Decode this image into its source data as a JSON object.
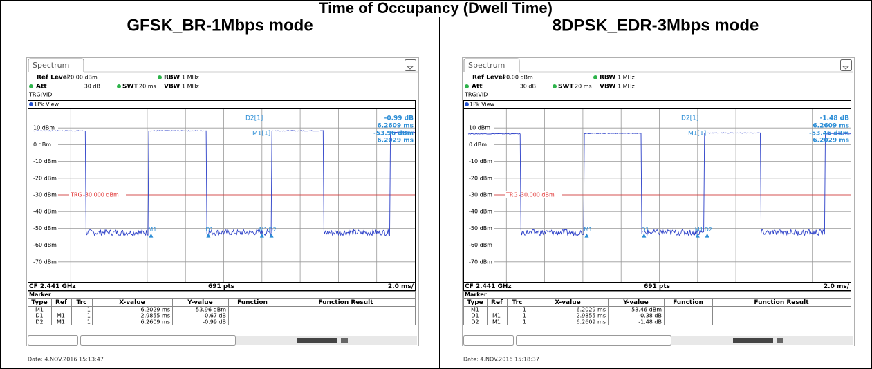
{
  "title": "Time of Occupancy (Dwell Time)",
  "panels": [
    {
      "mode": "GFSK_BR-1Mbps mode",
      "tab": "Spectrum",
      "settings": {
        "ref_level_label": "Ref Level",
        "ref_level": "20.00 dBm",
        "rbw_label": "RBW",
        "rbw": "1 MHz",
        "att_label": "Att",
        "att": "30 dB",
        "swt_label": "SWT",
        "swt": "20 ms",
        "vbw_label": "VBW",
        "vbw": "1 MHz",
        "trigger": "TRG:VID"
      },
      "view": "1Pk View",
      "y_labels": [
        "10 dBm",
        "0 dBm",
        "-10 dBm",
        "-20 dBm",
        "-30 dBm",
        "-40 dBm",
        "-50 dBm",
        "-60 dBm",
        "-70 dBm"
      ],
      "trigger_line": {
        "label": "TRG",
        "level": "-30.000 dBm"
      },
      "readout": {
        "d2_name": "D2[1]",
        "d2_value": "-0.99 dB",
        "d2_time": "6.2609 ms",
        "m1_name": "M1[1]",
        "m1_value": "-53.96 dBm",
        "m1_time": "6.2029 ms"
      },
      "trace_markers": [
        "M1",
        "D1",
        "M1",
        "D2"
      ],
      "footer": {
        "center": "CF 2.441 GHz",
        "points": "691 pts",
        "span": "2.0 ms/"
      },
      "marker_table": {
        "title": "Marker",
        "header": [
          "Type",
          "Ref",
          "Trc",
          "X-value",
          "Y-value",
          "Function",
          "Function Result"
        ],
        "rows": [
          {
            "type": "M1",
            "trc": "1",
            "x": "6.2029 ms",
            "y": "-53.96 dBm"
          },
          {
            "type": "D1",
            "ref": "M1",
            "trc": "1",
            "x": "2.9855 ms",
            "y": "-0.67 dB"
          },
          {
            "type": "D2",
            "ref": "M1",
            "trc": "1",
            "x": "6.2609 ms",
            "y": "-0.99 dB"
          }
        ]
      },
      "date": "Date: 4.NOV.2016 15:13:47"
    },
    {
      "mode": "8DPSK_EDR-3Mbps mode",
      "tab": "Spectrum",
      "settings": {
        "ref_level_label": "Ref Level",
        "ref_level": "20.00 dBm",
        "rbw_label": "RBW",
        "rbw": "1 MHz",
        "att_label": "Att",
        "att": "30 dB",
        "swt_label": "SWT",
        "swt": "20 ms",
        "vbw_label": "VBW",
        "vbw": "1 MHz",
        "trigger": "TRG:VID"
      },
      "view": "1Pk View",
      "y_labels": [
        "10 dBm",
        "0 dBm",
        "-10 dBm",
        "-20 dBm",
        "-30 dBm",
        "-40 dBm",
        "-50 dBm",
        "-60 dBm",
        "-70 dBm"
      ],
      "trigger_line": {
        "label": "TRG",
        "level": "-30.000 dBm"
      },
      "readout": {
        "d2_name": "D2[1]",
        "d2_value": "-1.48 dB",
        "d2_time": "6.2609 ms",
        "m1_name": "M1[1]",
        "m1_value": "-53.46 dBm",
        "m1_time": "6.2029 ms"
      },
      "trace_markers": [
        "M1",
        "D1",
        "M1",
        "D2"
      ],
      "footer": {
        "center": "CF 2.441 GHz",
        "points": "691 pts",
        "span": "2.0 ms/"
      },
      "marker_table": {
        "title": "Marker",
        "header": [
          "Type",
          "Ref",
          "Trc",
          "X-value",
          "Y-value",
          "Function",
          "Function Result"
        ],
        "rows": [
          {
            "type": "M1",
            "trc": "1",
            "x": "6.2029 ms",
            "y": "-53.46 dBm"
          },
          {
            "type": "D1",
            "ref": "M1",
            "trc": "1",
            "x": "2.9855 ms",
            "y": "-0.38 dB"
          },
          {
            "type": "D2",
            "ref": "M1",
            "trc": "1",
            "x": "6.2609 ms",
            "y": "-1.48 dB"
          }
        ]
      },
      "date": "Date: 4.NOV.2016 15:18:37"
    }
  ]
}
